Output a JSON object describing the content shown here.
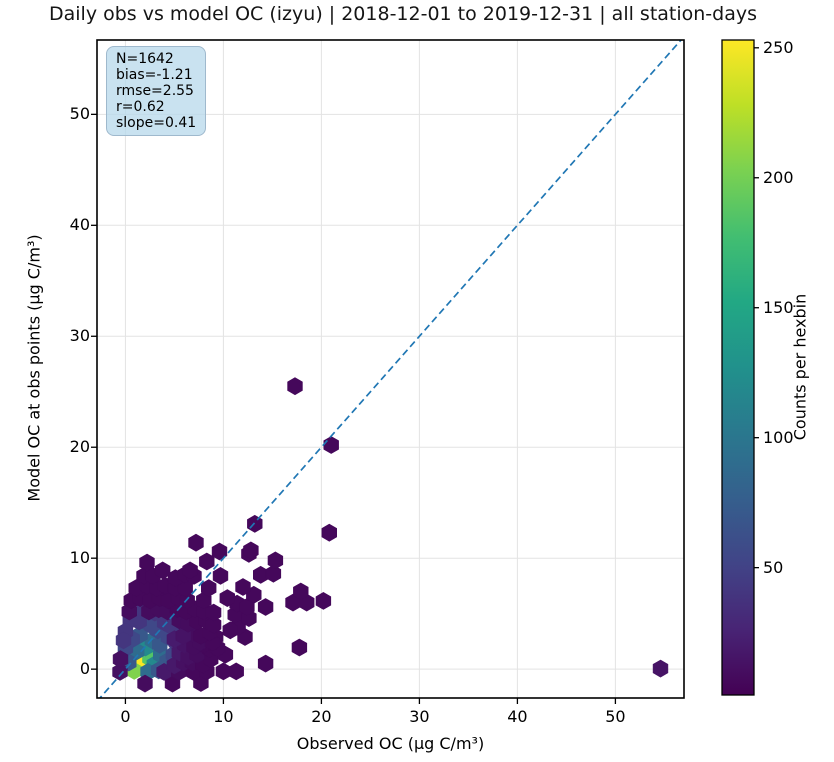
{
  "title": "Daily obs vs model OC (izyu) | 2018-12-01 to 2019-12-31 | all station-days",
  "stats_box": {
    "lines": [
      "N=1642",
      "bias=-1.21",
      "rmse=2.55",
      "r=0.62",
      "slope=0.41"
    ]
  },
  "chart_data": {
    "type": "heatmap",
    "subtype": "hexbin",
    "title": "Daily obs vs model OC (izyu) | 2018-12-01 to 2019-12-31 | all station-days",
    "xlabel": "Observed OC (µg C/m³)",
    "ylabel": "Model OC at obs points (µg C/m³)",
    "colorbar_label": "Counts per hexbin",
    "xlim": [
      -2.9,
      57.0
    ],
    "ylim": [
      -2.6,
      56.7
    ],
    "xticks": [
      0,
      10,
      20,
      30,
      40,
      50
    ],
    "yticks": [
      0,
      10,
      20,
      30,
      40,
      50
    ],
    "grid": true,
    "legend_position": "colorbar-right",
    "stats": {
      "N": 1642,
      "bias": -1.21,
      "rmse": 2.55,
      "r": 0.62,
      "slope": 0.41
    },
    "identity_line": {
      "style": "dashed",
      "color": "#2077b4",
      "from": [
        -2.9,
        -2.9
      ],
      "to": [
        57.0,
        57.0
      ]
    },
    "colormap": {
      "name": "viridis",
      "vmin": 1,
      "vmax": 253,
      "stops": [
        [
          0.0,
          "#440154"
        ],
        [
          0.1,
          "#482475"
        ],
        [
          0.2,
          "#414487"
        ],
        [
          0.3,
          "#355f8d"
        ],
        [
          0.4,
          "#2a788e"
        ],
        [
          0.5,
          "#21918c"
        ],
        [
          0.6,
          "#22a884"
        ],
        [
          0.7,
          "#42be71"
        ],
        [
          0.8,
          "#7ad151"
        ],
        [
          0.9,
          "#bddf26"
        ],
        [
          1.0,
          "#fde725"
        ]
      ]
    },
    "colorbar_ticks": [
      50,
      100,
      150,
      200,
      250
    ],
    "points": [
      [
        1.45,
        0.85,
        252
      ],
      [
        2.5,
        1.0,
        185
      ],
      [
        0.9,
        -0.15,
        205
      ],
      [
        2.05,
        1.95,
        120
      ],
      [
        2.95,
        0.4,
        120
      ],
      [
        1.15,
        1.6,
        90
      ],
      [
        2.75,
        2.6,
        90
      ],
      [
        2.3,
        -0.25,
        90
      ],
      [
        3.6,
        1.3,
        90
      ],
      [
        0.35,
        0.6,
        70
      ],
      [
        3.4,
        -0.1,
        70
      ],
      [
        4.25,
        0.7,
        70
      ],
      [
        3.5,
        2.2,
        70
      ],
      [
        1.5,
        3.1,
        70
      ],
      [
        0.0,
        1.9,
        55
      ],
      [
        4.9,
        1.3,
        55
      ],
      [
        4.4,
        2.9,
        55
      ],
      [
        2.2,
        4.2,
        55
      ],
      [
        3.3,
        3.5,
        55
      ],
      [
        0.7,
        2.7,
        55
      ],
      [
        2.7,
        3.9,
        55
      ],
      [
        1.4,
        4.3,
        40
      ],
      [
        4.0,
        4.2,
        40
      ],
      [
        5.2,
        2.4,
        40
      ],
      [
        5.6,
        0.9,
        40
      ],
      [
        3.0,
        5.1,
        40
      ],
      [
        0.5,
        4.4,
        40
      ],
      [
        4.6,
        3.9,
        40
      ],
      [
        1.9,
        5.4,
        40
      ],
      [
        5.8,
        3.2,
        40
      ],
      [
        4.8,
        5.0,
        40
      ],
      [
        0.0,
        3.4,
        40
      ],
      [
        6.3,
        1.7,
        40
      ],
      [
        -0.2,
        2.6,
        40
      ],
      [
        2.0,
        -1.3,
        9
      ],
      [
        4.8,
        -1.3,
        6
      ],
      [
        7.7,
        -1.25,
        6
      ],
      [
        -0.55,
        -0.25,
        12
      ],
      [
        3.95,
        -0.25,
        18
      ],
      [
        5.45,
        -0.25,
        9
      ],
      [
        6.95,
        -0.25,
        6
      ],
      [
        8.3,
        -0.2,
        6
      ],
      [
        10.0,
        -0.2,
        6
      ],
      [
        11.3,
        -0.2,
        6
      ],
      [
        14.3,
        0.5,
        6
      ],
      [
        54.6,
        0.05,
        14
      ],
      [
        -0.5,
        0.9,
        12
      ],
      [
        5.0,
        0.35,
        18
      ],
      [
        5.95,
        0.6,
        12
      ],
      [
        6.85,
        0.6,
        9
      ],
      [
        7.9,
        0.4,
        6
      ],
      [
        8.7,
        0.9,
        6
      ],
      [
        10.2,
        1.3,
        6
      ],
      [
        5.5,
        1.5,
        18
      ],
      [
        6.4,
        1.1,
        12
      ],
      [
        7.3,
        1.3,
        9
      ],
      [
        8.6,
        1.8,
        6
      ],
      [
        9.4,
        1.9,
        6
      ],
      [
        6.05,
        2.2,
        14
      ],
      [
        7.0,
        2.0,
        9
      ],
      [
        8.0,
        2.2,
        6
      ],
      [
        9.2,
        2.9,
        6
      ],
      [
        12.2,
        2.9,
        6
      ],
      [
        17.75,
        1.95,
        6
      ],
      [
        7.6,
        2.4,
        9
      ],
      [
        8.9,
        2.4,
        6
      ],
      [
        5.0,
        2.7,
        20
      ],
      [
        6.8,
        3.2,
        9
      ],
      [
        7.7,
        3.0,
        6
      ],
      [
        11.5,
        3.8,
        6
      ],
      [
        8.6,
        3.3,
        6
      ],
      [
        10.7,
        3.5,
        6
      ],
      [
        5.9,
        3.0,
        14
      ],
      [
        5.5,
        4.4,
        9
      ],
      [
        6.4,
        4.1,
        9
      ],
      [
        7.3,
        4.3,
        6
      ],
      [
        8.2,
        4.4,
        6
      ],
      [
        11.2,
        4.9,
        6
      ],
      [
        12.6,
        4.6,
        6
      ],
      [
        9.0,
        4.0,
        6
      ],
      [
        0.4,
        5.2,
        9
      ],
      [
        2.4,
        5.2,
        9
      ],
      [
        3.4,
        5.4,
        9
      ],
      [
        4.3,
        5.2,
        9
      ],
      [
        5.3,
        5.4,
        6
      ],
      [
        6.2,
        5.2,
        6
      ],
      [
        7.1,
        5.4,
        6
      ],
      [
        8.0,
        5.2,
        6
      ],
      [
        9.0,
        5.1,
        6
      ],
      [
        11.4,
        5.9,
        6
      ],
      [
        12.4,
        5.6,
        6
      ],
      [
        14.3,
        5.6,
        6
      ],
      [
        0.6,
        6.2,
        6
      ],
      [
        1.5,
        6.4,
        6
      ],
      [
        2.5,
        6.2,
        6
      ],
      [
        3.5,
        6.4,
        6
      ],
      [
        4.4,
        6.2,
        6
      ],
      [
        5.4,
        6.4,
        6
      ],
      [
        6.3,
        6.2,
        6
      ],
      [
        8.0,
        6.2,
        6
      ],
      [
        10.4,
        6.4,
        6
      ],
      [
        13.1,
        6.7,
        6
      ],
      [
        17.1,
        6.0,
        6
      ],
      [
        18.5,
        6.0,
        6
      ],
      [
        20.2,
        6.15,
        6
      ],
      [
        1.1,
        7.3,
        6
      ],
      [
        2.2,
        7.5,
        6
      ],
      [
        3.2,
        7.3,
        6
      ],
      [
        4.1,
        7.5,
        6
      ],
      [
        5.1,
        7.3,
        6
      ],
      [
        6.1,
        7.3,
        6
      ],
      [
        8.5,
        7.3,
        6
      ],
      [
        12.0,
        7.4,
        6
      ],
      [
        17.9,
        7.0,
        6
      ],
      [
        1.9,
        8.4,
        6
      ],
      [
        2.8,
        8.4,
        6
      ],
      [
        5.1,
        8.2,
        6
      ],
      [
        6.1,
        8.5,
        6
      ],
      [
        7.0,
        8.4,
        6
      ],
      [
        9.7,
        8.4,
        6
      ],
      [
        13.8,
        8.5,
        6
      ],
      [
        15.1,
        8.6,
        6
      ],
      [
        3.8,
        8.9,
        6
      ],
      [
        6.6,
        8.9,
        6
      ],
      [
        2.2,
        9.6,
        6
      ],
      [
        8.3,
        9.7,
        6
      ],
      [
        15.3,
        9.8,
        6
      ],
      [
        12.6,
        10.4,
        6
      ],
      [
        9.6,
        10.6,
        6
      ],
      [
        12.8,
        10.7,
        6
      ],
      [
        7.2,
        11.4,
        6
      ],
      [
        20.8,
        12.3,
        6
      ],
      [
        13.2,
        13.1,
        6
      ],
      [
        21.0,
        20.2,
        6
      ],
      [
        17.3,
        25.5,
        6
      ]
    ]
  }
}
